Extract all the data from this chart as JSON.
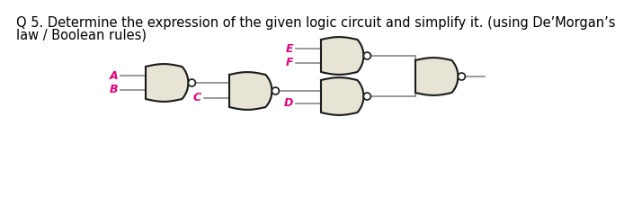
{
  "title_line1": "Q 5. Determine the expression of the given logic circuit and simplify it. (using De’Morgan’s",
  "title_line2": "law / Boolean rules)",
  "title_fontsize": 10.5,
  "title_color": "#000000",
  "label_color": "#e8007a",
  "label_fontsize": 9,
  "bg_color": "#ffffff",
  "gate_fill": "#e8e4d5",
  "gate_edge": "#1a1a1a",
  "wire_color": "#888888",
  "bubble_fill": "#ffffff",
  "bubble_edge": "#1a1a1a"
}
